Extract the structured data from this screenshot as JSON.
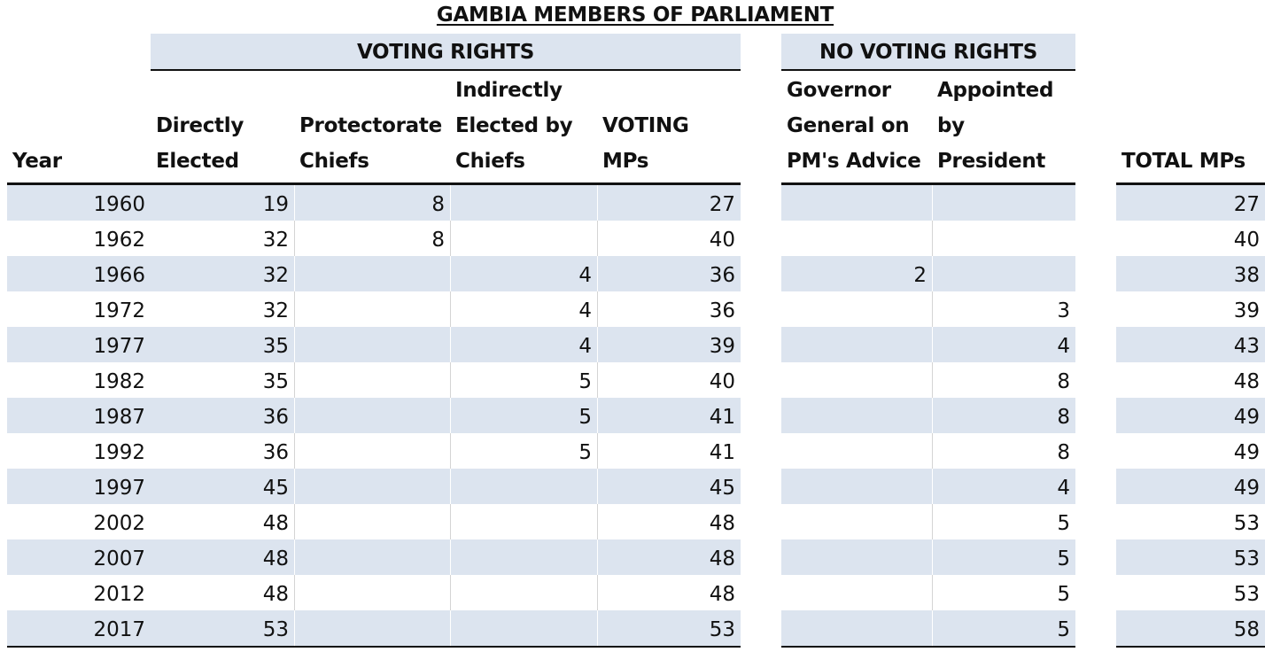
{
  "title": "GAMBIA MEMBERS OF PARLIAMENT",
  "groups": {
    "voting": "VOTING RIGHTS",
    "no_voting": "NO VOTING RIGHTS"
  },
  "columns": {
    "year": "Year",
    "direct": "Directly\nElected",
    "chiefs": "Protectorate\nChiefs",
    "indirect": "Indirectly\nElected by\nChiefs",
    "voting": "VOTING\nMPs",
    "gg": "Governor\nGeneral on\nPM's Advice",
    "appointed": "Appointed\nby\nPresident",
    "total": "TOTAL MPs"
  },
  "rows": [
    {
      "year": "1960",
      "direct": "19",
      "chiefs": "8",
      "indirect": "",
      "voting": "27",
      "gg": "",
      "appointed": "",
      "total": "27"
    },
    {
      "year": "1962",
      "direct": "32",
      "chiefs": "8",
      "indirect": "",
      "voting": "40",
      "gg": "",
      "appointed": "",
      "total": "40"
    },
    {
      "year": "1966",
      "direct": "32",
      "chiefs": "",
      "indirect": "4",
      "voting": "36",
      "gg": "2",
      "appointed": "",
      "total": "38"
    },
    {
      "year": "1972",
      "direct": "32",
      "chiefs": "",
      "indirect": "4",
      "voting": "36",
      "gg": "",
      "appointed": "3",
      "total": "39"
    },
    {
      "year": "1977",
      "direct": "35",
      "chiefs": "",
      "indirect": "4",
      "voting": "39",
      "gg": "",
      "appointed": "4",
      "total": "43"
    },
    {
      "year": "1982",
      "direct": "35",
      "chiefs": "",
      "indirect": "5",
      "voting": "40",
      "gg": "",
      "appointed": "8",
      "total": "48"
    },
    {
      "year": "1987",
      "direct": "36",
      "chiefs": "",
      "indirect": "5",
      "voting": "41",
      "gg": "",
      "appointed": "8",
      "total": "49"
    },
    {
      "year": "1992",
      "direct": "36",
      "chiefs": "",
      "indirect": "5",
      "voting": "41",
      "gg": "",
      "appointed": "8",
      "total": "49"
    },
    {
      "year": "1997",
      "direct": "45",
      "chiefs": "",
      "indirect": "",
      "voting": "45",
      "gg": "",
      "appointed": "4",
      "total": "49"
    },
    {
      "year": "2002",
      "direct": "48",
      "chiefs": "",
      "indirect": "",
      "voting": "48",
      "gg": "",
      "appointed": "5",
      "total": "53"
    },
    {
      "year": "2007",
      "direct": "48",
      "chiefs": "",
      "indirect": "",
      "voting": "48",
      "gg": "",
      "appointed": "5",
      "total": "53"
    },
    {
      "year": "2012",
      "direct": "48",
      "chiefs": "",
      "indirect": "",
      "voting": "48",
      "gg": "",
      "appointed": "5",
      "total": "53"
    },
    {
      "year": "2017",
      "direct": "53",
      "chiefs": "",
      "indirect": "",
      "voting": "53",
      "gg": "",
      "appointed": "5",
      "total": "58"
    }
  ]
}
